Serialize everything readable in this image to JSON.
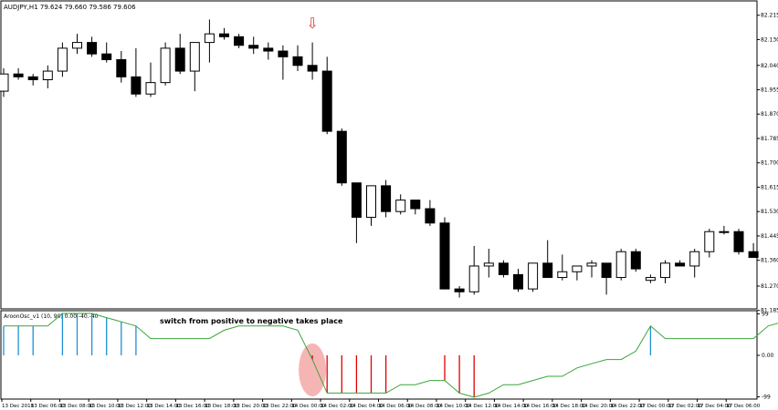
{
  "chart_data": [
    {
      "type": "candlestick",
      "title": "AUDJPY,H1  79.624 79.660 79.586 79.606",
      "ylim": [
        81.2,
        82.23
      ],
      "y_ticks": [
        "82.215",
        "82.130",
        "82.040",
        "81.955",
        "81.870",
        "81.785",
        "81.700",
        "81.615",
        "81.530",
        "81.445",
        "81.360",
        "81.270",
        "81.185"
      ],
      "y_tick_values": [
        82.215,
        82.13,
        82.04,
        81.955,
        81.87,
        81.785,
        81.7,
        81.615,
        81.53,
        81.445,
        81.36,
        81.27,
        81.185
      ],
      "annotation_arrow": {
        "index": 21,
        "symbol": "⇩",
        "color": "#e53935"
      },
      "up_color": "#ffffff",
      "down_color": "#000000",
      "candles": [
        {
          "o": 81.95,
          "h": 82.03,
          "l": 81.93,
          "c": 82.01
        },
        {
          "o": 82.01,
          "h": 82.03,
          "l": 81.99,
          "c": 82.0
        },
        {
          "o": 82.0,
          "h": 82.01,
          "l": 81.97,
          "c": 81.99
        },
        {
          "o": 81.99,
          "h": 82.04,
          "l": 81.96,
          "c": 82.02
        },
        {
          "o": 82.02,
          "h": 82.12,
          "l": 82.0,
          "c": 82.1
        },
        {
          "o": 82.1,
          "h": 82.15,
          "l": 82.08,
          "c": 82.12
        },
        {
          "o": 82.12,
          "h": 82.14,
          "l": 82.07,
          "c": 82.08
        },
        {
          "o": 82.08,
          "h": 82.12,
          "l": 82.05,
          "c": 82.06
        },
        {
          "o": 82.06,
          "h": 82.09,
          "l": 81.98,
          "c": 82.0
        },
        {
          "o": 82.0,
          "h": 82.1,
          "l": 81.93,
          "c": 81.94
        },
        {
          "o": 81.94,
          "h": 82.05,
          "l": 81.93,
          "c": 81.98
        },
        {
          "o": 81.98,
          "h": 82.12,
          "l": 81.97,
          "c": 82.1
        },
        {
          "o": 82.1,
          "h": 82.15,
          "l": 82.01,
          "c": 82.02
        },
        {
          "o": 82.02,
          "h": 82.12,
          "l": 81.95,
          "c": 82.12
        },
        {
          "o": 82.12,
          "h": 82.2,
          "l": 82.05,
          "c": 82.15
        },
        {
          "o": 82.15,
          "h": 82.17,
          "l": 82.13,
          "c": 82.14
        },
        {
          "o": 82.14,
          "h": 82.15,
          "l": 82.1,
          "c": 82.11
        },
        {
          "o": 82.11,
          "h": 82.14,
          "l": 82.08,
          "c": 82.1
        },
        {
          "o": 82.1,
          "h": 82.12,
          "l": 82.06,
          "c": 82.09
        },
        {
          "o": 82.09,
          "h": 82.11,
          "l": 81.99,
          "c": 82.07
        },
        {
          "o": 82.07,
          "h": 82.11,
          "l": 82.02,
          "c": 82.04
        },
        {
          "o": 82.04,
          "h": 82.12,
          "l": 81.99,
          "c": 82.02
        },
        {
          "o": 82.02,
          "h": 82.07,
          "l": 81.8,
          "c": 81.81
        },
        {
          "o": 81.81,
          "h": 81.82,
          "l": 81.62,
          "c": 81.63
        },
        {
          "o": 81.63,
          "h": 81.62,
          "l": 81.42,
          "c": 81.51
        },
        {
          "o": 81.51,
          "h": 81.62,
          "l": 81.48,
          "c": 81.62
        },
        {
          "o": 81.62,
          "h": 81.64,
          "l": 81.51,
          "c": 81.53
        },
        {
          "o": 81.53,
          "h": 81.59,
          "l": 81.52,
          "c": 81.57
        },
        {
          "o": 81.57,
          "h": 81.57,
          "l": 81.52,
          "c": 81.54
        },
        {
          "o": 81.54,
          "h": 81.57,
          "l": 81.48,
          "c": 81.49
        },
        {
          "o": 81.49,
          "h": 81.51,
          "l": 81.26,
          "c": 81.26
        },
        {
          "o": 81.26,
          "h": 81.27,
          "l": 81.23,
          "c": 81.25
        },
        {
          "o": 81.25,
          "h": 81.41,
          "l": 81.24,
          "c": 81.34
        },
        {
          "o": 81.34,
          "h": 81.4,
          "l": 81.3,
          "c": 81.35
        },
        {
          "o": 81.35,
          "h": 81.36,
          "l": 81.3,
          "c": 81.31
        },
        {
          "o": 81.31,
          "h": 81.33,
          "l": 81.25,
          "c": 81.26
        },
        {
          "o": 81.26,
          "h": 81.35,
          "l": 81.25,
          "c": 81.35
        },
        {
          "o": 81.35,
          "h": 81.43,
          "l": 81.3,
          "c": 81.3
        },
        {
          "o": 81.3,
          "h": 81.38,
          "l": 81.29,
          "c": 81.32
        },
        {
          "o": 81.32,
          "h": 81.34,
          "l": 81.29,
          "c": 81.34
        },
        {
          "o": 81.34,
          "h": 81.36,
          "l": 81.3,
          "c": 81.35
        },
        {
          "o": 81.35,
          "h": 81.35,
          "l": 81.24,
          "c": 81.3
        },
        {
          "o": 81.3,
          "h": 81.4,
          "l": 81.29,
          "c": 81.39
        },
        {
          "o": 81.39,
          "h": 81.4,
          "l": 81.32,
          "c": 81.33
        },
        {
          "o": 81.29,
          "h": 81.31,
          "l": 81.28,
          "c": 81.3
        },
        {
          "o": 81.3,
          "h": 81.36,
          "l": 81.28,
          "c": 81.35
        },
        {
          "o": 81.35,
          "h": 81.36,
          "l": 81.34,
          "c": 81.34
        },
        {
          "o": 81.34,
          "h": 81.4,
          "l": 81.3,
          "c": 81.39
        },
        {
          "o": 81.39,
          "h": 81.47,
          "l": 81.37,
          "c": 81.46
        },
        {
          "o": 81.46,
          "h": 81.48,
          "l": 81.45,
          "c": 81.46
        },
        {
          "o": 81.46,
          "h": 81.47,
          "l": 81.38,
          "c": 81.39
        },
        {
          "o": 81.39,
          "h": 81.42,
          "l": 81.37,
          "c": 81.37
        }
      ]
    },
    {
      "type": "bar+line",
      "title": "AroonOsc_v1 (10, 90) 0.00 -40.-40",
      "annotation": "switch from positive to negative takes place",
      "ylim": [
        -100,
        100
      ],
      "y_ticks": [
        "99",
        "0.00",
        "-99"
      ],
      "y_tick_values": [
        99,
        0,
        -99
      ],
      "positive_color": "#1e90d6",
      "negative_color": "#e00000",
      "line_color": "#3aa63a",
      "highlight_index": 21,
      "highlight_color": "#f4a8a8",
      "values": [
        70,
        70,
        70,
        70,
        100,
        100,
        100,
        90,
        80,
        70,
        40,
        40,
        40,
        40,
        40,
        60,
        70,
        70,
        70,
        70,
        60,
        -10,
        -90,
        -90,
        -90,
        -90,
        -90,
        -70,
        -70,
        -60,
        -60,
        -90,
        -100,
        -90,
        -70,
        -70,
        -60,
        -50,
        -50,
        -30,
        -20,
        -10,
        -10,
        10,
        70,
        40,
        40,
        40,
        40,
        40,
        40,
        40,
        70,
        80,
        90,
        90,
        70
      ],
      "bar_indices": [
        0,
        1,
        2,
        4,
        5,
        6,
        7,
        8,
        9,
        21,
        22,
        23,
        24,
        25,
        26,
        30,
        31,
        32,
        44,
        53,
        54,
        55
      ]
    }
  ],
  "x_axis": {
    "labels": [
      "13 Dec 2018",
      "13 Dec 06:00",
      "13 Dec 08:00",
      "13 Dec 10:00",
      "13 Dec 12:00",
      "13 Dec 14:00",
      "13 Dec 16:00",
      "13 Dec 18:00",
      "13 Dec 20:00",
      "13 Dec 22:00",
      "14 Dec 00:00",
      "14 Dec 02:00",
      "14 Dec 04:00",
      "14 Dec 06:00",
      "14 Dec 08:00",
      "14 Dec 10:00",
      "14 Dec 12:00",
      "14 Dec 14:00",
      "14 Dec 16:00",
      "14 Dec 18:00",
      "14 Dec 20:00",
      "14 Dec 22:00",
      "17 Dec 00:00",
      "17 Dec 02:00",
      "17 Dec 04:00",
      "17 Dec 06:00"
    ]
  }
}
